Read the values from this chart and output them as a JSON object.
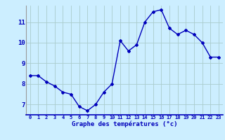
{
  "x": [
    0,
    1,
    2,
    3,
    4,
    5,
    6,
    7,
    8,
    9,
    10,
    11,
    12,
    13,
    14,
    15,
    16,
    17,
    18,
    19,
    20,
    21,
    22,
    23
  ],
  "y": [
    8.4,
    8.4,
    8.1,
    7.9,
    7.6,
    7.5,
    6.9,
    6.7,
    7.0,
    7.6,
    8.0,
    10.1,
    9.6,
    9.9,
    11.0,
    11.5,
    11.6,
    10.7,
    10.4,
    10.6,
    10.4,
    10.0,
    9.3,
    9.3
  ],
  "line_color": "#0000bb",
  "marker": "D",
  "marker_size": 2.0,
  "line_width": 1.0,
  "bg_color": "#cceeff",
  "grid_color": "#aacccc",
  "xlabel": "Graphe des températures (°c)",
  "xlabel_color": "#0000bb",
  "tick_color": "#0000bb",
  "ylim": [
    6.5,
    11.8
  ],
  "yticks": [
    7,
    8,
    9,
    10,
    11
  ],
  "xlim": [
    -0.5,
    23.5
  ],
  "xticks": [
    0,
    1,
    2,
    3,
    4,
    5,
    6,
    7,
    8,
    9,
    10,
    11,
    12,
    13,
    14,
    15,
    16,
    17,
    18,
    19,
    20,
    21,
    22,
    23
  ],
  "xtick_labels": [
    "0",
    "1",
    "2",
    "3",
    "4",
    "5",
    "6",
    "7",
    "8",
    "9",
    "10",
    "11",
    "12",
    "13",
    "14",
    "15",
    "16",
    "17",
    "18",
    "19",
    "20",
    "21",
    "22",
    "23"
  ]
}
